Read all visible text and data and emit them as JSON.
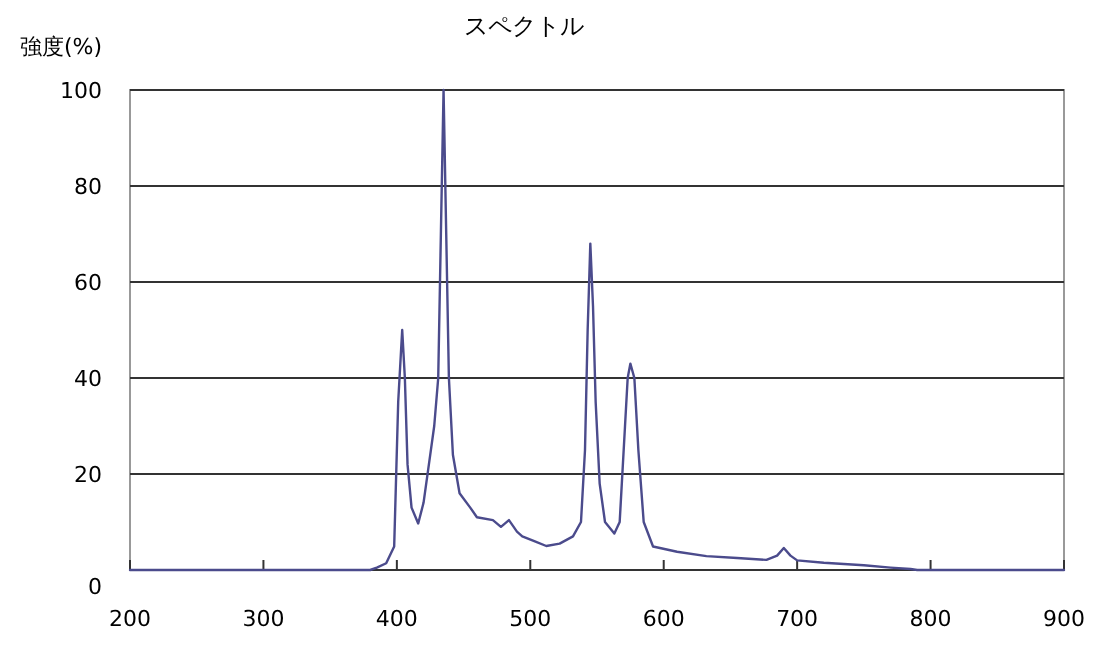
{
  "chart_data": {
    "type": "line",
    "title": "スペクトル",
    "ylabel": "強度(%)",
    "x": [
      200,
      380,
      385,
      392,
      398,
      401,
      403,
      404,
      406,
      408,
      411,
      416,
      420,
      425,
      428,
      431,
      433,
      435,
      437,
      439,
      442,
      447,
      455,
      460,
      472,
      478,
      484,
      490,
      494,
      503,
      512,
      522,
      532,
      538,
      541,
      543,
      545,
      547,
      549,
      552,
      556,
      563,
      567,
      571,
      573,
      575,
      578,
      581,
      585,
      592,
      610,
      632,
      655,
      677,
      685,
      690,
      695,
      700,
      720,
      750,
      770,
      785,
      790,
      900
    ],
    "values": [
      0,
      0,
      0.5,
      1.4,
      4.9,
      35,
      45,
      50,
      40,
      22,
      13,
      9.7,
      14,
      24,
      30,
      40,
      70,
      100,
      70,
      40,
      24,
      16,
      13,
      11,
      10.4,
      9,
      10.4,
      8,
      7,
      6,
      5,
      5.5,
      7,
      10,
      25,
      50,
      68,
      55,
      35,
      18,
      10,
      7.6,
      10,
      30,
      40,
      43,
      40,
      25,
      10,
      4.9,
      3.8,
      2.9,
      2.5,
      2.1,
      3,
      4.6,
      3,
      2,
      1.5,
      1,
      0.5,
      0.2,
      0,
      0
    ],
    "color": "#4b4b8c",
    "xlim": [
      200,
      900
    ],
    "ylim": [
      0,
      100
    ],
    "xticks": [
      200,
      300,
      400,
      500,
      600,
      700,
      800,
      900
    ],
    "yticks": [
      0,
      20,
      40,
      60,
      80,
      100
    ],
    "grid": "y"
  }
}
